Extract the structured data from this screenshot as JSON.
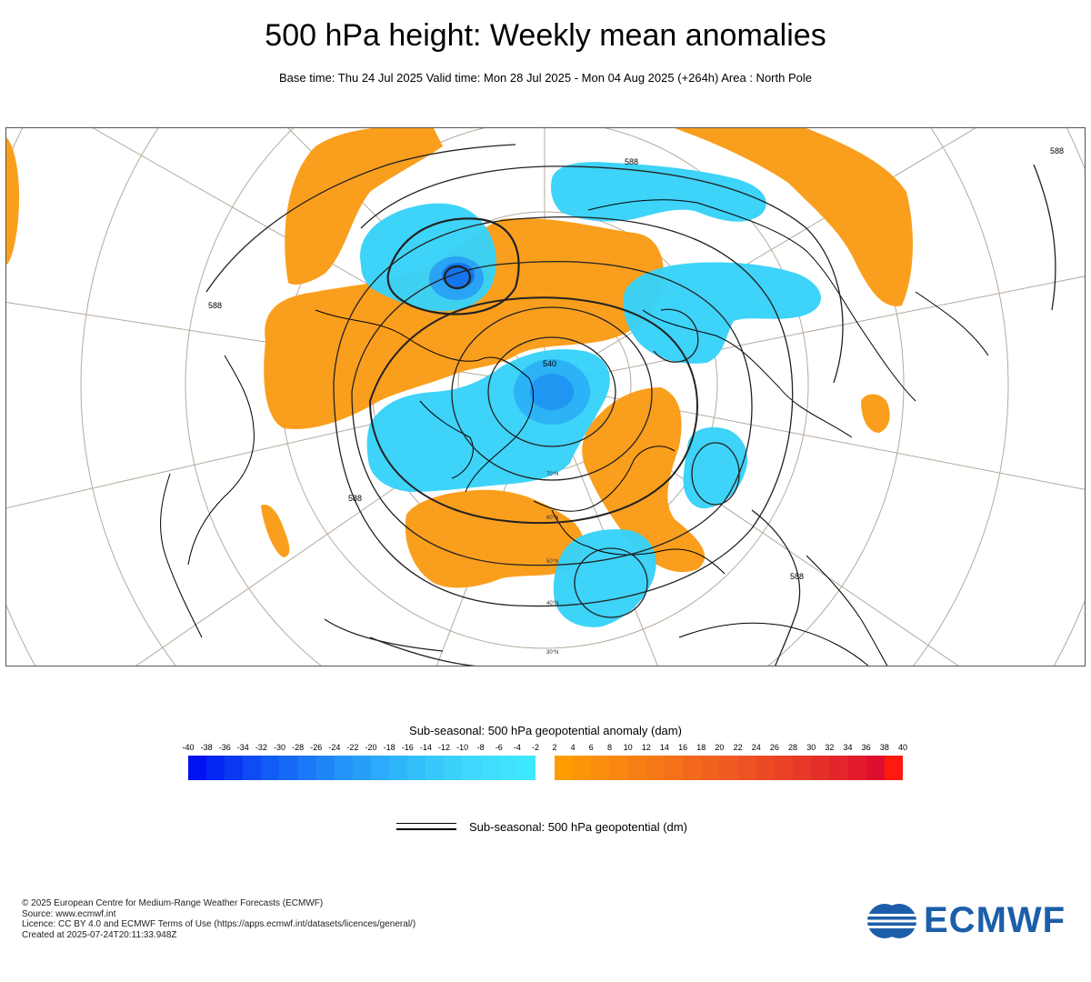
{
  "header": {
    "title": "500 hPa height: Weekly mean anomalies",
    "subtitle": "Base time: Thu 24 Jul 2025 Valid time: Mon 28 Jul 2025 - Mon 04 Aug 2025 (+264h) Area : North Pole"
  },
  "map": {
    "projection": "polar stereographic, North Pole",
    "contour_labels": [
      "588",
      "588",
      "588",
      "588",
      "588",
      "540"
    ],
    "latitude_labels": [
      "70°N",
      "60°N",
      "50°N",
      "40°N",
      "30°N"
    ]
  },
  "legend": {
    "title": "Sub-seasonal: 500 hPa geopotential anomaly (dam)",
    "ticks": [
      "-40",
      "-38",
      "-36",
      "-34",
      "-32",
      "-30",
      "-28",
      "-26",
      "-24",
      "-22",
      "-20",
      "-18",
      "-16",
      "-14",
      "-12",
      "-10",
      "-8",
      "-6",
      "-4",
      "-2",
      "2",
      "4",
      "6",
      "8",
      "10",
      "12",
      "14",
      "16",
      "18",
      "20",
      "22",
      "24",
      "26",
      "28",
      "30",
      "32",
      "34",
      "36",
      "38",
      "40"
    ],
    "negative_colors": [
      "#0012f0",
      "#0526f2",
      "#0a38f3",
      "#0f4af4",
      "#135bf5",
      "#176af6",
      "#1b78f6",
      "#1f86f7",
      "#2393f8",
      "#279ff8",
      "#2babf9",
      "#2fb6fa",
      "#33c0fa",
      "#37c9fb",
      "#3bd1fb",
      "#3fd8fc",
      "#40defc",
      "#3fe3fc",
      "#3ee8fc"
    ],
    "positive_colors": [
      "#ff9c00",
      "#fd9508",
      "#fb8e0c",
      "#f98711",
      "#f77f14",
      "#f67817",
      "#f4711a",
      "#f2691c",
      "#f1621f",
      "#ef5a21",
      "#ed5223",
      "#eb4a25",
      "#e94226",
      "#e73928",
      "#e5302a",
      "#e3262b",
      "#e11b2c",
      "#e00e2e",
      "#ff1a10"
    ],
    "line_label": "Sub-seasonal: 500 hPa geopotential (dm)"
  },
  "footer": {
    "credits": [
      "© 2025 European Centre for Medium-Range Weather Forecasts (ECMWF)",
      "Source: www.ecmwf.int",
      "Licence: CC BY 4.0 and ECMWF Terms of Use (https://apps.ecmwf.int/datasets/licences/general/)",
      "Created at 2025-07-24T20:11:33.948Z"
    ],
    "logo_text": "ECMWF"
  },
  "colors": {
    "negative": "#38d2f8",
    "positive": "#fa9b14",
    "brand": "#1c5ea9"
  }
}
